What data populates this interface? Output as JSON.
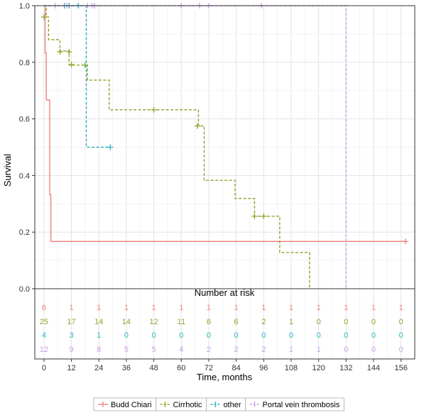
{
  "chart_data": {
    "type": "line",
    "subtype": "kaplan-meier",
    "xlabel": "Time, months",
    "ylabel": "Survival",
    "xlim": [
      -4,
      162
    ],
    "ylim": [
      0,
      1
    ],
    "x_ticks": [
      0,
      12,
      24,
      36,
      48,
      60,
      72,
      84,
      96,
      108,
      120,
      132,
      144,
      156
    ],
    "x_tick_labels": [
      "0",
      "12",
      "24",
      "36",
      "48",
      "60",
      "72",
      "84",
      "96",
      "108",
      "120",
      "132",
      "144",
      "156"
    ],
    "y_ticks": [
      0,
      0.2,
      0.4,
      0.6,
      0.8,
      1.0
    ],
    "y_tick_labels": [
      "0.0",
      "0.2",
      "0.4",
      "0.6",
      "0.8",
      "1.0"
    ],
    "grid": true,
    "legend_position": "bottom",
    "series": [
      {
        "name": "Budd Chiari",
        "color": "#f08080",
        "dash": "solid",
        "steps": [
          [
            0,
            1.0
          ],
          [
            0.5,
            0.833
          ],
          [
            1,
            0.667
          ],
          [
            2.5,
            0.333
          ],
          [
            3,
            0.167
          ],
          [
            158,
            0.167
          ]
        ],
        "censored": [
          [
            158,
            0.167
          ]
        ]
      },
      {
        "name": "Cirrhotic",
        "color": "#8aa52b",
        "dash": "dashed",
        "steps": [
          [
            0,
            1.0
          ],
          [
            1,
            0.96
          ],
          [
            2,
            0.88
          ],
          [
            7,
            0.84
          ],
          [
            11,
            0.79
          ],
          [
            19,
            0.737
          ],
          [
            28,
            0.737
          ],
          [
            28.5,
            0.632
          ],
          [
            67,
            0.632
          ],
          [
            67.5,
            0.575
          ],
          [
            69,
            0.575
          ],
          [
            70,
            0.383
          ],
          [
            83,
            0.383
          ],
          [
            83.5,
            0.319
          ],
          [
            91,
            0.319
          ],
          [
            92,
            0.256
          ],
          [
            102,
            0.256
          ],
          [
            103,
            0.128
          ],
          [
            115,
            0.128
          ],
          [
            116,
            0.0
          ]
        ],
        "censored": [
          [
            0,
            0.96
          ],
          [
            7,
            0.837
          ],
          [
            11,
            0.837
          ],
          [
            12,
            0.792
          ],
          [
            18,
            0.79
          ],
          [
            48,
            0.632
          ],
          [
            67,
            0.575
          ],
          [
            92,
            0.256
          ],
          [
            96,
            0.256
          ]
        ]
      },
      {
        "name": "other",
        "color": "#2bb3c2",
        "dash": "dashed",
        "steps": [
          [
            0,
            1.0
          ],
          [
            18,
            1.0
          ],
          [
            18.5,
            0.5
          ],
          [
            29,
            0.5
          ]
        ],
        "censored": [
          [
            9,
            1.0
          ],
          [
            11,
            1.0
          ],
          [
            15,
            1.0
          ],
          [
            29,
            0.5
          ]
        ]
      },
      {
        "name": "Portal vein thrombosis",
        "color": "#c9a0e8",
        "dash": "dashed",
        "steps": [
          [
            0,
            1.0
          ],
          [
            132,
            1.0
          ],
          [
            132,
            0.0
          ]
        ],
        "censored": [
          [
            5,
            1.0
          ],
          [
            10,
            1.0
          ],
          [
            19,
            1.0
          ],
          [
            21,
            1.0
          ],
          [
            22,
            1.0
          ],
          [
            60,
            1.0
          ],
          [
            68,
            1.0
          ],
          [
            72,
            1.0
          ],
          [
            95,
            1.0
          ]
        ]
      }
    ],
    "risk_table": {
      "title": "Number at risk",
      "times": [
        0,
        12,
        24,
        36,
        48,
        60,
        72,
        84,
        96,
        108,
        120,
        132,
        144,
        156
      ],
      "rows": [
        {
          "name": "Budd Chiari",
          "color": "#f08080",
          "values": [
            "6",
            "1",
            "1",
            "1",
            "1",
            "1",
            "1",
            "1",
            "1",
            "1",
            "1",
            "1",
            "1",
            "1"
          ]
        },
        {
          "name": "Cirrhotic",
          "color": "#8aa52b",
          "values": [
            "25",
            "17",
            "14",
            "14",
            "12",
            "11",
            "6",
            "6",
            "2",
            "1",
            "0",
            "0",
            "0",
            "0"
          ]
        },
        {
          "name": "other",
          "color": "#2bb3c2",
          "values": [
            "4",
            "3",
            "1",
            "0",
            "0",
            "0",
            "0",
            "0",
            "0",
            "0",
            "0",
            "0",
            "0",
            "0"
          ]
        },
        {
          "name": "Portal vein thrombosis",
          "color": "#c9a0e8",
          "values": [
            "12",
            "9",
            "8",
            "5",
            "5",
            "4",
            "2",
            "2",
            "2",
            "1",
            "1",
            "0",
            "0",
            "0"
          ]
        }
      ]
    }
  }
}
